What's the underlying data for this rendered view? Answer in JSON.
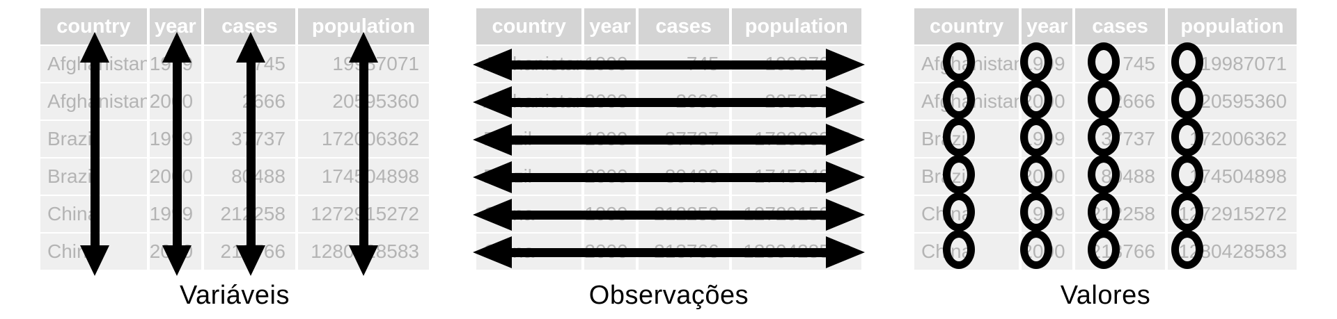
{
  "figure": {
    "captions": {
      "variables": "Variáveis",
      "observations": "Observações",
      "values": "Valores"
    }
  },
  "table": {
    "headers": [
      "country",
      "year",
      "cases",
      "population"
    ],
    "rows": [
      [
        "Afghanistan",
        "1999",
        "745",
        "19987071"
      ],
      [
        "Afghanistan",
        "2000",
        "2666",
        "20595360"
      ],
      [
        "Brazil",
        "1999",
        "37737",
        "172006362"
      ],
      [
        "Brazil",
        "2000",
        "80488",
        "174504898"
      ],
      [
        "China",
        "1999",
        "212258",
        "1272915272"
      ],
      [
        "China",
        "2000",
        "213766",
        "1280428583"
      ]
    ]
  },
  "colors": {
    "header_bg": "#d4d4d4",
    "row_bg": "#efefef",
    "header_text": "#ffffff",
    "cell_text": "#b4b4b4",
    "annotation": "#000000",
    "background": "#ffffff"
  }
}
